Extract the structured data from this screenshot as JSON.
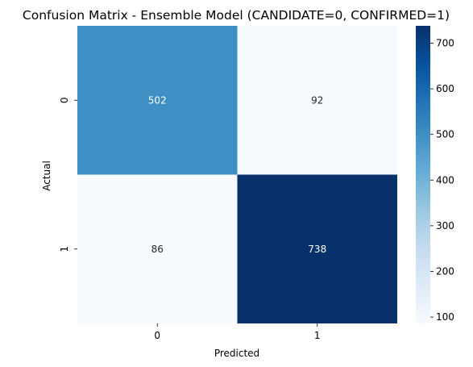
{
  "chart_data": {
    "type": "heatmap",
    "title": "Confusion Matrix - Ensemble Model (CANDIDATE=0, CONFIRMED=1)",
    "xlabel": "Predicted",
    "ylabel": "Actual",
    "x_categories": [
      "0",
      "1"
    ],
    "y_categories": [
      "0",
      "1"
    ],
    "values": [
      [
        502,
        92
      ],
      [
        86,
        738
      ]
    ],
    "colormap": "Blues",
    "color_range": [
      86,
      738
    ],
    "colorbar_ticks": [
      100,
      200,
      300,
      400,
      500,
      600,
      700
    ],
    "grid": false
  }
}
